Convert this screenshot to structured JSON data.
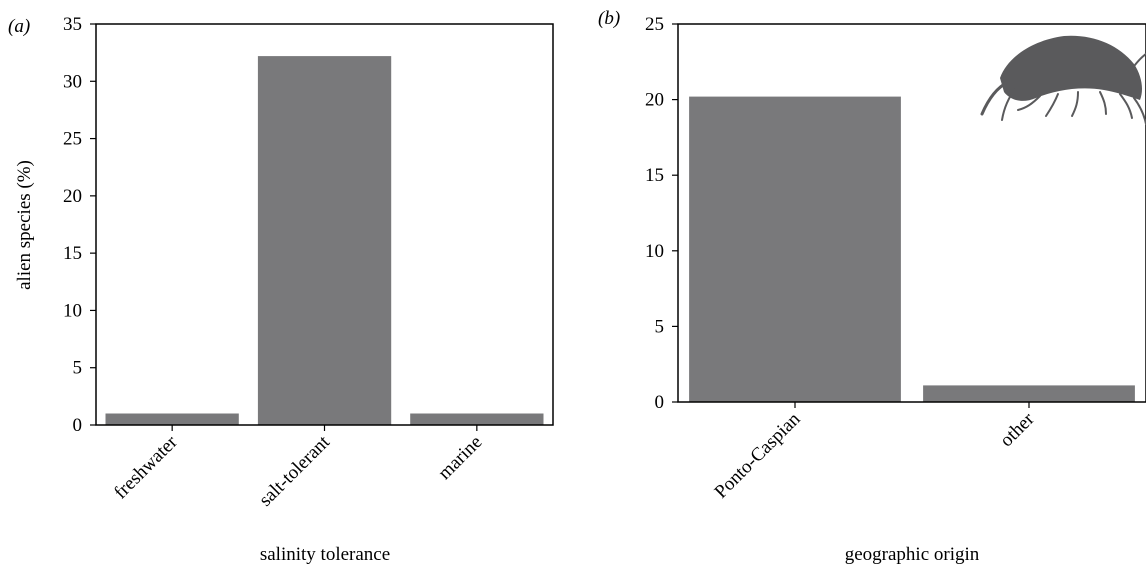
{
  "chart_data": [
    {
      "type": "bar",
      "panel_label": "(a)",
      "categories": [
        "freshwater",
        "salt-tolerant",
        "marine"
      ],
      "values": [
        1.0,
        32.2,
        1.0
      ],
      "xlabel": "salinity tolerance",
      "ylabel": "alien species (%)",
      "ylim": [
        0,
        35
      ],
      "yticks": [
        "0",
        "5",
        "10",
        "15",
        "20",
        "25",
        "30",
        "35"
      ],
      "bar_color": "#79797b",
      "grid": false,
      "legend": "none"
    },
    {
      "type": "bar",
      "panel_label": "(b)",
      "categories": [
        "Ponto-Caspian",
        "other"
      ],
      "values": [
        20.2,
        1.1
      ],
      "xlabel": "geographic origin",
      "ylabel": "",
      "ylim": [
        0,
        25
      ],
      "yticks": [
        "0",
        "5",
        "10",
        "15",
        "20",
        "25"
      ],
      "bar_color": "#79797b",
      "grid": false,
      "legend": "none",
      "decoration": "amphipod-silhouette-icon"
    }
  ]
}
